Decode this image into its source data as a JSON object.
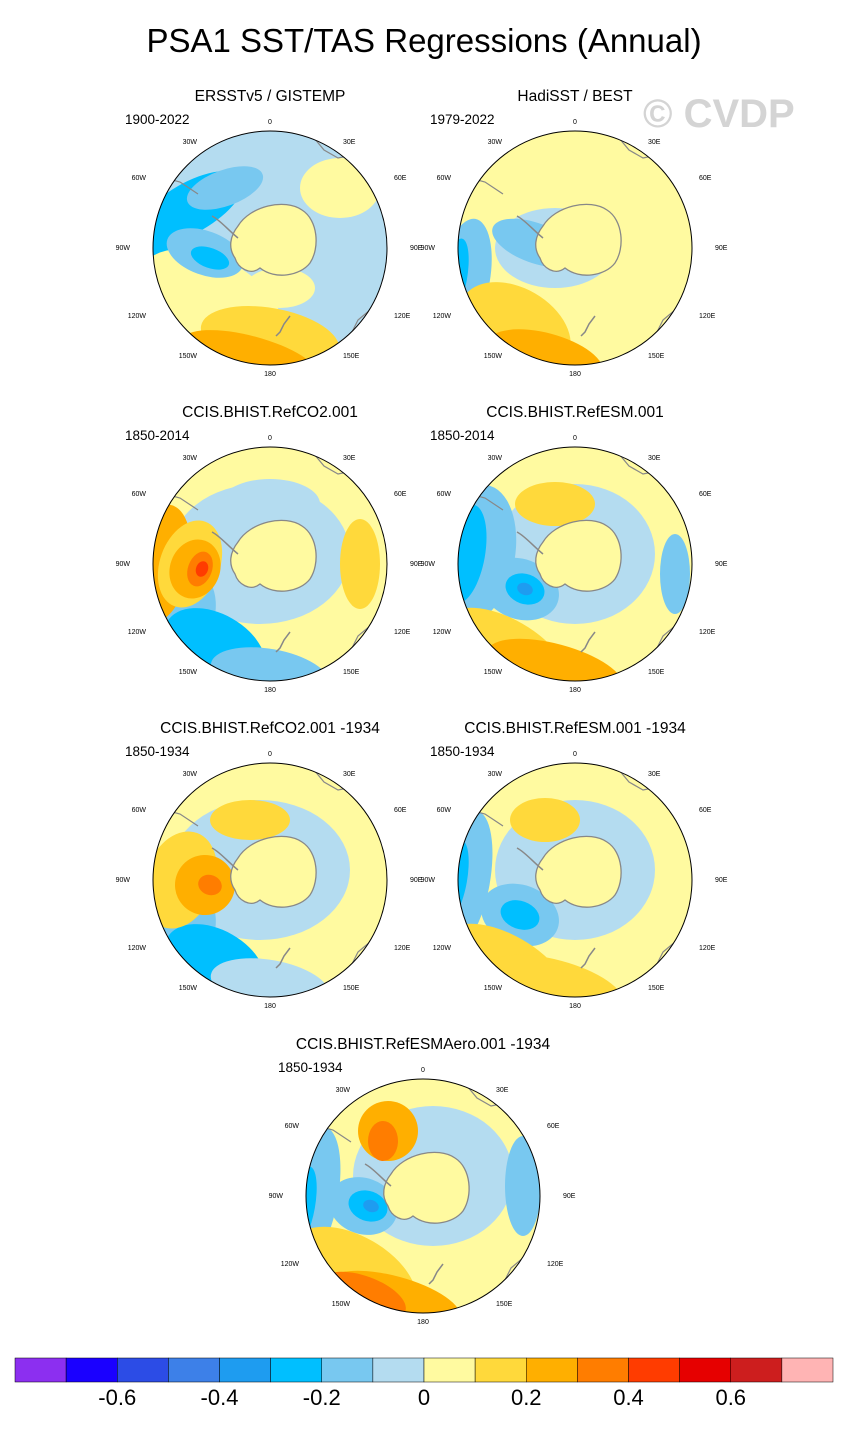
{
  "title": "PSA1 SST/TAS Regressions (Annual)",
  "watermark": "© CVDP",
  "lon_labels": [
    "0",
    "30E",
    "60E",
    "90E",
    "120E",
    "150E",
    "180",
    "150W",
    "120W",
    "90W",
    "60W",
    "30W"
  ],
  "panels": [
    {
      "title": "ERSSTv5 / GISTEMP",
      "years": "1900-2022"
    },
    {
      "title": "HadiSST / BEST",
      "years": "1979-2022"
    },
    {
      "title": "CCIS.BHIST.RefCO2.001",
      "years": "1850-2014"
    },
    {
      "title": "CCIS.BHIST.RefESM.001",
      "years": "1850-2014"
    },
    {
      "title": "CCIS.BHIST.RefCO2.001 -1934",
      "years": "1850-1934"
    },
    {
      "title": "CCIS.BHIST.RefESM.001 -1934",
      "years": "1850-1934"
    },
    {
      "title": "CCIS.BHIST.RefESMAero.001 -1934",
      "years": "1850-1934"
    }
  ],
  "colorbar": {
    "colors": [
      "#8c2ff0",
      "#1a00ff",
      "#2c4ce6",
      "#3d80e8",
      "#1e9cf0",
      "#00bfff",
      "#78c8f0",
      "#b4dcf0",
      "#fffaa0",
      "#ffd93b",
      "#ffaf00",
      "#ff7d00",
      "#ff3c00",
      "#e60000",
      "#cd1e1e",
      "#ffb4b4"
    ],
    "labels": [
      "-0.6",
      "-0.4",
      "-0.2",
      "0",
      "0.2",
      "0.4",
      "0.6"
    ]
  },
  "palette": {
    "land": "#fffaa0",
    "ocean_light_blue": "#b4dcf0",
    "coast": "#888888"
  }
}
